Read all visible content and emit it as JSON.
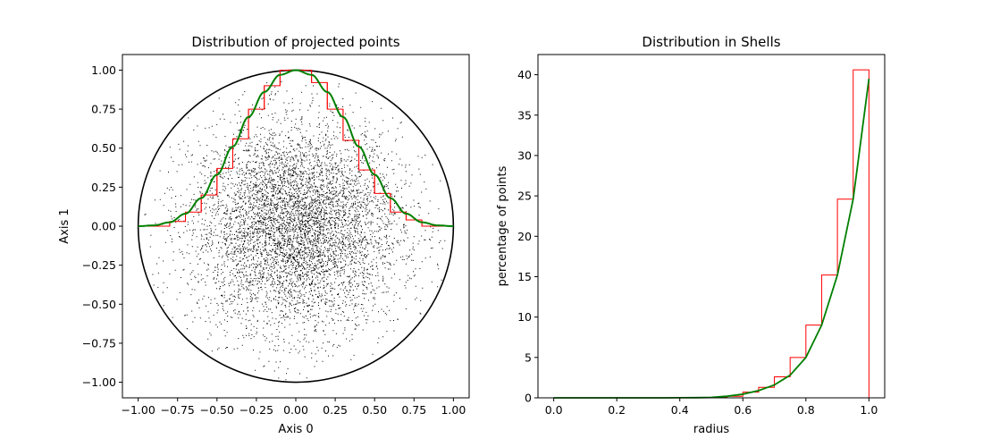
{
  "colors": {
    "background": "#ffffff",
    "axes": "#000000",
    "histogram": "#ff0000",
    "curve": "#008000",
    "points": "#000000",
    "circle": "#000000"
  },
  "chart_data": [
    {
      "type": "scatter",
      "title": "Distribution of projected points",
      "xlabel": "Axis 0",
      "ylabel": "Axis 1",
      "xlim": [
        -1.1,
        1.1
      ],
      "ylim": [
        -1.1,
        1.1
      ],
      "xticks": [
        -1.0,
        -0.75,
        -0.5,
        -0.25,
        0.0,
        0.25,
        0.5,
        0.75,
        1.0
      ],
      "xtick_labels": [
        "−1.00",
        "−0.75",
        "−0.50",
        "−0.25",
        "0.00",
        "0.25",
        "0.50",
        "0.75",
        "1.00"
      ],
      "yticks": [
        1.0,
        0.75,
        0.5,
        0.25,
        0.0,
        -0.25,
        -0.5,
        -0.75,
        -1.0
      ],
      "ytick_labels": [
        "1.00",
        "0.75",
        "0.50",
        "0.25",
        "0.00",
        "−0.25",
        "−0.50",
        "−0.75",
        "−1.00"
      ],
      "grid": false,
      "legend": null,
      "unit_circle_radius": 1.0,
      "scatter_points": {
        "approx_count": 6000,
        "distribution": "gaussian-like cloud centered at (0,0), std ~0.33, clipped to unit disk",
        "marker_size": "1px"
      },
      "histogram_step": {
        "bin_edges": [
          -1.0,
          -0.9,
          -0.8,
          -0.7,
          -0.6,
          -0.5,
          -0.4,
          -0.3,
          -0.2,
          -0.1,
          0.0,
          0.1,
          0.2,
          0.3,
          0.4,
          0.5,
          0.6,
          0.7,
          0.8,
          0.9,
          1.0
        ],
        "heights": [
          0.0,
          0.0,
          0.03,
          0.09,
          0.2,
          0.37,
          0.56,
          0.75,
          0.9,
          1.0,
          1.0,
          0.92,
          0.75,
          0.55,
          0.36,
          0.21,
          0.09,
          0.04,
          0.0,
          0.0
        ]
      },
      "curve": {
        "x": [
          -1.0,
          -0.9,
          -0.8,
          -0.7,
          -0.6,
          -0.5,
          -0.4,
          -0.3,
          -0.2,
          -0.1,
          0.0,
          0.1,
          0.2,
          0.3,
          0.4,
          0.5,
          0.6,
          0.7,
          0.8,
          0.9,
          1.0
        ],
        "y": [
          0.0,
          0.005,
          0.025,
          0.08,
          0.18,
          0.33,
          0.51,
          0.7,
          0.86,
          0.97,
          1.0,
          0.97,
          0.86,
          0.7,
          0.51,
          0.33,
          0.18,
          0.08,
          0.025,
          0.005,
          0.0
        ]
      }
    },
    {
      "type": "bar",
      "title": "Distribution in Shells",
      "xlabel": "radius",
      "ylabel": "percentage of points",
      "xlim": [
        -0.05,
        1.05
      ],
      "ylim": [
        0,
        42.5
      ],
      "xticks": [
        0.0,
        0.2,
        0.4,
        0.6,
        0.8,
        1.0
      ],
      "xtick_labels": [
        "0.0",
        "0.2",
        "0.4",
        "0.6",
        "0.8",
        "1.0"
      ],
      "yticks": [
        0,
        5,
        10,
        15,
        20,
        25,
        30,
        35,
        40
      ],
      "ytick_labels": [
        "0",
        "5",
        "10",
        "15",
        "20",
        "25",
        "30",
        "35",
        "40"
      ],
      "grid": false,
      "legend": null,
      "histogram_step": {
        "bin_edges": [
          0.0,
          0.05,
          0.1,
          0.15,
          0.2,
          0.25,
          0.3,
          0.35,
          0.4,
          0.45,
          0.5,
          0.55,
          0.6,
          0.65,
          0.7,
          0.75,
          0.8,
          0.85,
          0.9,
          0.95,
          1.0
        ],
        "heights": [
          0,
          0,
          0,
          0,
          0,
          0,
          0,
          0,
          0,
          0,
          0.05,
          0.2,
          0.7,
          1.3,
          2.6,
          5.0,
          9.0,
          15.2,
          24.6,
          40.6
        ]
      },
      "curve": {
        "x": [
          0.0,
          0.05,
          0.1,
          0.15,
          0.2,
          0.25,
          0.3,
          0.35,
          0.4,
          0.45,
          0.5,
          0.55,
          0.6,
          0.65,
          0.7,
          0.75,
          0.8,
          0.85,
          0.9,
          0.95,
          1.0
        ],
        "y": [
          0,
          0,
          0,
          0,
          0,
          0,
          0,
          0,
          0.01,
          0.02,
          0.05,
          0.2,
          0.45,
          0.9,
          1.6,
          2.8,
          5.0,
          9.0,
          15.2,
          24.6,
          39.5
        ]
      }
    }
  ]
}
